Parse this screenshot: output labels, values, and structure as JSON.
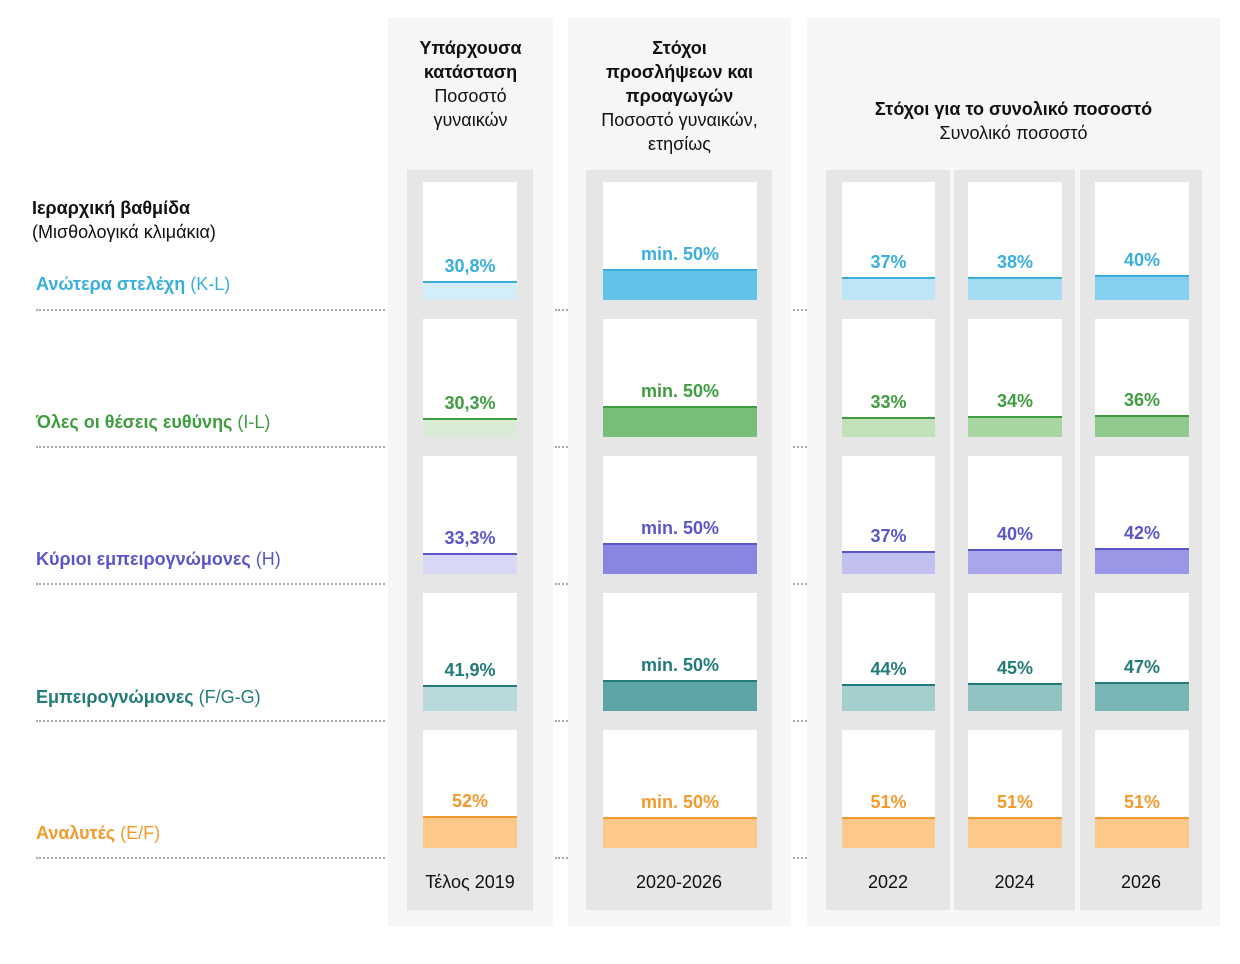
{
  "hierarchy": {
    "title": "Ιεραρχική βαθμίδα",
    "subtitle": "(Μισθολογικά κλιμάκια)"
  },
  "headers": {
    "current": {
      "line1": "Υπάρχουσα",
      "line2": "κατάσταση",
      "sub1": "Ποσοστό",
      "sub2": "γυναικών"
    },
    "hiring": {
      "line1": "Στόχοι",
      "line2": "προσλήψεων και",
      "line3": "προαγωγών",
      "sub1": "Ποσοστό γυναικών,",
      "sub2": "ετησίως"
    },
    "overall": {
      "title": "Στόχοι για το συνολικό ποσοστό",
      "sub": "Συνολικό ποσοστό"
    }
  },
  "footers": {
    "current": "Τέλος 2019",
    "hiring": "2020-2026",
    "y2022": "2022",
    "y2024": "2024",
    "y2026": "2026"
  },
  "chart_data": {
    "type": "bar",
    "columns": [
      "Τέλος 2019",
      "2020-2026",
      "2022",
      "2024",
      "2026"
    ],
    "rows": [
      {
        "name": "Ανώτερα στελέχη",
        "code": "(K-L)",
        "color": "#3aaedc",
        "light": "#d3eef9",
        "mid": "#a6dcf1",
        "dark": "#62c3ea",
        "labels": [
          "30,8%",
          "min. 50%",
          "37%",
          "38%",
          "40%"
        ],
        "values": [
          30.8,
          50,
          37,
          38,
          40
        ]
      },
      {
        "name": "Όλες οι θέσεις ευθύνης",
        "code": "(I-L)",
        "color": "#3f9c3f",
        "light": "#d9ecd6",
        "mid": "#a8d6a0",
        "dark": "#78be78",
        "labels": [
          "30,3%",
          "min. 50%",
          "33%",
          "34%",
          "36%"
        ],
        "values": [
          30.3,
          50,
          33,
          34,
          36
        ]
      },
      {
        "name": "Κύριοι εμπειρογνώμονες",
        "code": "(H)",
        "color": "#5a56c8",
        "light": "#d8d8f6",
        "mid": "#a9a7e9",
        "dark": "#8986e2",
        "labels": [
          "33,3%",
          "min. 50%",
          "37%",
          "40%",
          "42%"
        ],
        "values": [
          33.3,
          50,
          37,
          40,
          42
        ]
      },
      {
        "name": "Εμπειρογνώμονες",
        "code": "(F/G-G)",
        "color": "#237a7a",
        "light": "#b8d9db",
        "mid": "#92c3c3",
        "dark": "#5ea6a6",
        "labels": [
          "41,9%",
          "min. 50%",
          "44%",
          "45%",
          "47%"
        ],
        "values": [
          41.9,
          50,
          44,
          45,
          47
        ]
      },
      {
        "name": "Αναλυτές",
        "code": "(E/F)",
        "color": "#f39a2e",
        "light": "#fdc98a",
        "mid": "#fdc98a",
        "dark": "#fdc98a",
        "labels": [
          "52%",
          "min. 50%",
          "51%",
          "51%",
          "51%"
        ],
        "values": [
          52,
          50,
          51,
          51,
          51
        ]
      }
    ],
    "ylim": [
      0,
      100
    ]
  }
}
